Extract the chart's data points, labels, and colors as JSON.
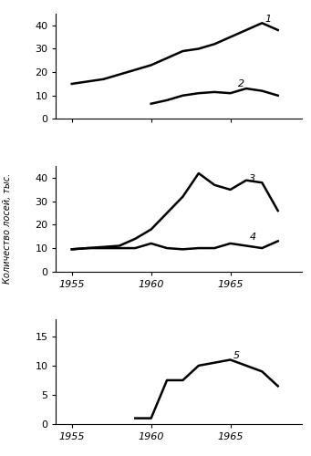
{
  "line1_finland": {
    "x": [
      1955,
      1956,
      1957,
      1958,
      1959,
      1960,
      1961,
      1962,
      1963,
      1964,
      1965,
      1966,
      1967,
      1968
    ],
    "y": [
      15,
      16,
      17,
      19,
      21,
      23,
      26,
      29,
      30,
      32,
      35,
      38,
      41,
      38
    ],
    "label": "1"
  },
  "line2_karelia": {
    "x": [
      1960,
      1961,
      1962,
      1963,
      1964,
      1965,
      1966,
      1967,
      1968
    ],
    "y": [
      6.5,
      8,
      10,
      11,
      11.5,
      11,
      13,
      12,
      10
    ],
    "label": "2"
  },
  "line3_leningrad": {
    "x": [
      1955,
      1956,
      1957,
      1958,
      1959,
      1960,
      1961,
      1962,
      1963,
      1964,
      1965,
      1966,
      1967,
      1968
    ],
    "y": [
      9.5,
      10,
      10.5,
      11,
      14,
      18,
      25,
      32,
      42,
      37,
      35,
      39,
      38,
      26
    ],
    "label": "3"
  },
  "line4_novgorod": {
    "x": [
      1955,
      1956,
      1957,
      1958,
      1959,
      1960,
      1961,
      1962,
      1963,
      1964,
      1965,
      1966,
      1967,
      1968
    ],
    "y": [
      9.5,
      10,
      10,
      10,
      10,
      12,
      10,
      9.5,
      10,
      10,
      12,
      11,
      10,
      13
    ],
    "label": "4"
  },
  "line5_pskov": {
    "x": [
      1959,
      1960,
      1961,
      1962,
      1963,
      1964,
      1965,
      1966,
      1967,
      1968
    ],
    "y": [
      1,
      1,
      7.5,
      7.5,
      10,
      10.5,
      11,
      10,
      9,
      6.5
    ],
    "label": "5"
  },
  "panel1_ylim": [
    0,
    45
  ],
  "panel1_yticks": [
    0,
    10,
    20,
    30,
    40
  ],
  "panel2_ylim": [
    0,
    45
  ],
  "panel2_yticks": [
    0,
    10,
    20,
    30,
    40
  ],
  "panel3_ylim": [
    0,
    18
  ],
  "panel3_yticks": [
    0,
    5,
    10,
    15
  ],
  "xlim": [
    1954,
    1969.5
  ],
  "xticks": [
    1955,
    1960,
    1965
  ],
  "ylabel": "Количество лосей, тыс.",
  "linewidth": 1.8,
  "linecolor": "black",
  "fontsize_tick": 8,
  "fontsize_anno": 8
}
